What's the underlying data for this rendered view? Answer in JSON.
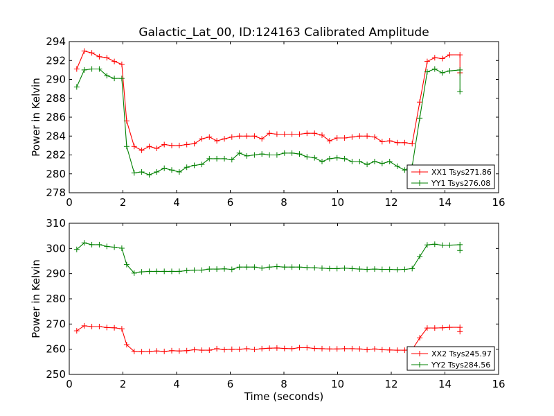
{
  "page_title": "Galactic_Lat_00, ID:124163 Calibrated Amplitude",
  "chart_data": [
    {
      "type": "line",
      "title": "Galactic_Lat_00, ID:124163 Calibrated Amplitude",
      "xlabel": "",
      "ylabel": "Power in Kelvin",
      "xlim": [
        0,
        16
      ],
      "ylim": [
        278,
        294
      ],
      "xticks": [
        "0",
        "2",
        "4",
        "6",
        "8",
        "10",
        "12",
        "14",
        "16"
      ],
      "yticks": [
        "278",
        "280",
        "282",
        "284",
        "286",
        "288",
        "290",
        "292",
        "294"
      ],
      "grid": false,
      "legend_position": "lower-right",
      "marker": "plus",
      "x": [
        0.28,
        0.56,
        0.84,
        1.12,
        1.4,
        1.68,
        1.96,
        2.14,
        2.42,
        2.7,
        2.98,
        3.26,
        3.54,
        3.82,
        4.1,
        4.38,
        4.66,
        4.94,
        5.22,
        5.5,
        5.78,
        6.06,
        6.34,
        6.62,
        6.9,
        7.18,
        7.46,
        7.74,
        8.02,
        8.3,
        8.58,
        8.86,
        9.14,
        9.42,
        9.7,
        9.98,
        10.26,
        10.54,
        10.82,
        11.1,
        11.38,
        11.66,
        11.94,
        12.22,
        12.5,
        12.78,
        13.06,
        13.34,
        13.62,
        13.9,
        14.18,
        14.56
      ],
      "series": [
        {
          "name": "XX1 Tsys271.86",
          "color": "#ff0000",
          "values": [
            291.1,
            293.0,
            292.8,
            292.4,
            292.3,
            291.9,
            291.6,
            285.6,
            282.9,
            282.5,
            282.9,
            282.7,
            283.1,
            283.0,
            283.0,
            283.1,
            283.2,
            283.7,
            283.9,
            283.5,
            283.7,
            283.9,
            284.0,
            284.0,
            284.0,
            283.7,
            284.3,
            284.2,
            284.2,
            284.2,
            284.2,
            284.3,
            284.3,
            284.1,
            283.5,
            283.8,
            283.8,
            283.9,
            284.0,
            284.0,
            283.9,
            283.4,
            283.5,
            283.3,
            283.3,
            283.2,
            287.6,
            291.9,
            292.3,
            292.2,
            292.6,
            292.6
          ],
          "extra_point_last": 290.7
        },
        {
          "name": "YY1 Tsys276.08",
          "color": "#008000",
          "values": [
            289.2,
            291.0,
            291.1,
            291.1,
            290.4,
            290.1,
            290.1,
            282.9,
            280.1,
            280.2,
            279.9,
            280.2,
            280.6,
            280.4,
            280.2,
            280.7,
            280.9,
            281.0,
            281.6,
            281.6,
            281.6,
            281.5,
            282.2,
            281.9,
            282.0,
            282.1,
            282.0,
            282.0,
            282.2,
            282.2,
            282.1,
            281.8,
            281.7,
            281.3,
            281.6,
            281.7,
            281.6,
            281.3,
            281.3,
            281.0,
            281.3,
            281.1,
            281.3,
            280.8,
            280.4,
            280.8,
            285.9,
            290.8,
            291.1,
            290.7,
            290.9,
            291.0
          ],
          "extra_point_last": 288.7
        }
      ]
    },
    {
      "type": "line",
      "title": "",
      "xlabel": "Time (seconds)",
      "ylabel": "Power in Kelvin",
      "xlim": [
        0,
        16
      ],
      "ylim": [
        250,
        310
      ],
      "xticks": [
        "0",
        "2",
        "4",
        "6",
        "8",
        "10",
        "12",
        "14",
        "16"
      ],
      "yticks": [
        "250",
        "260",
        "270",
        "280",
        "290",
        "300",
        "310"
      ],
      "grid": false,
      "legend_position": "lower-right",
      "marker": "plus",
      "x": [
        0.28,
        0.56,
        0.84,
        1.12,
        1.4,
        1.68,
        1.96,
        2.14,
        2.42,
        2.7,
        2.98,
        3.26,
        3.54,
        3.82,
        4.1,
        4.38,
        4.66,
        4.94,
        5.22,
        5.5,
        5.78,
        6.06,
        6.34,
        6.62,
        6.9,
        7.18,
        7.46,
        7.74,
        8.02,
        8.3,
        8.58,
        8.86,
        9.14,
        9.42,
        9.7,
        9.98,
        10.26,
        10.54,
        10.82,
        11.1,
        11.38,
        11.66,
        11.94,
        12.22,
        12.5,
        12.78,
        13.06,
        13.34,
        13.62,
        13.9,
        14.18,
        14.56
      ],
      "series": [
        {
          "name": "XX2 Tsys245.97",
          "color": "#ff0000",
          "values": [
            267.3,
            269.3,
            269.0,
            269.0,
            268.6,
            268.5,
            268.1,
            261.8,
            259.1,
            259.0,
            259.1,
            259.3,
            259.1,
            259.4,
            259.3,
            259.4,
            259.8,
            259.6,
            259.6,
            260.2,
            259.8,
            260.0,
            260.0,
            260.2,
            259.9,
            260.2,
            260.4,
            260.5,
            260.3,
            260.2,
            260.6,
            260.6,
            260.3,
            260.2,
            260.1,
            260.1,
            260.2,
            260.2,
            260.1,
            259.8,
            260.1,
            259.8,
            259.7,
            259.6,
            259.6,
            259.8,
            264.5,
            268.4,
            268.4,
            268.5,
            268.7,
            268.7
          ],
          "extra_point_last": 267.0
        },
        {
          "name": "YY2 Tsys284.56",
          "color": "#008000",
          "values": [
            299.6,
            302.2,
            301.5,
            301.5,
            300.8,
            300.5,
            300.1,
            293.6,
            290.2,
            290.7,
            290.9,
            290.9,
            290.9,
            290.9,
            290.9,
            291.2,
            291.4,
            291.4,
            291.8,
            291.8,
            291.9,
            291.7,
            292.6,
            292.6,
            292.6,
            292.2,
            292.6,
            292.8,
            292.6,
            292.6,
            292.6,
            292.4,
            292.3,
            292.2,
            292.0,
            292.0,
            292.2,
            292.0,
            291.8,
            291.7,
            291.8,
            291.7,
            291.7,
            291.6,
            291.7,
            292.0,
            296.8,
            301.4,
            301.7,
            301.3,
            301.3,
            301.5
          ],
          "extra_point_last": 299.2
        }
      ]
    }
  ]
}
